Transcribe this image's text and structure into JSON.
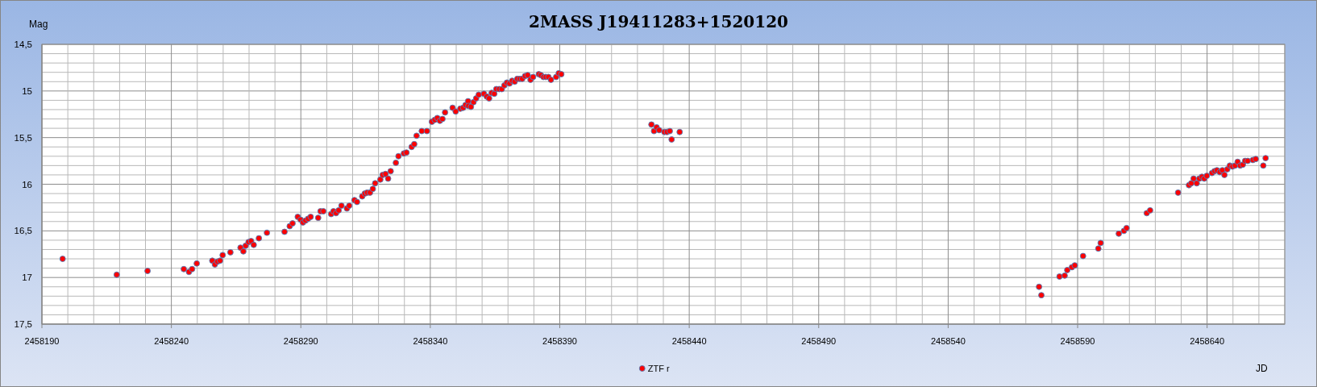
{
  "chart_data": {
    "type": "scatter",
    "title": "2MASS J19411283+1520120",
    "xlabel": "JD",
    "ylabel": "Mag",
    "legend": "bottom",
    "grid": true,
    "marker": "circle",
    "xlim": [
      2458190,
      2458670
    ],
    "xticks": [
      2458190,
      {
        "value": 2458200,
        "label": null
      },
      {
        "value": 2458210,
        "label": null
      },
      {
        "value": 2458220,
        "label": null
      },
      {
        "value": 2458230,
        "label": null
      },
      2458240,
      {
        "value": 2458250,
        "label": null
      },
      {
        "value": 2458260,
        "label": null
      },
      {
        "value": 2458270,
        "label": null
      },
      {
        "value": 2458280,
        "label": null
      },
      2458290,
      {
        "value": 2458300,
        "label": null
      },
      {
        "value": 2458310,
        "label": null
      },
      {
        "value": 2458320,
        "label": null
      },
      {
        "value": 2458330,
        "label": null
      },
      2458340,
      {
        "value": 2458350,
        "label": null
      },
      {
        "value": 2458360,
        "label": null
      },
      {
        "value": 2458370,
        "label": null
      },
      {
        "value": 2458380,
        "label": null
      },
      2458390,
      {
        "value": 2458400,
        "label": null
      },
      {
        "value": 2458410,
        "label": null
      },
      {
        "value": 2458420,
        "label": null
      },
      {
        "value": 2458430,
        "label": null
      },
      2458440,
      {
        "value": 2458450,
        "label": null
      },
      {
        "value": 2458460,
        "label": null
      },
      {
        "value": 2458470,
        "label": null
      },
      {
        "value": 2458480,
        "label": null
      },
      2458490,
      {
        "value": 2458500,
        "label": null
      },
      {
        "value": 2458510,
        "label": null
      },
      {
        "value": 2458520,
        "label": null
      },
      {
        "value": 2458530,
        "label": null
      },
      2458540,
      {
        "value": 2458550,
        "label": null
      },
      {
        "value": 2458560,
        "label": null
      },
      {
        "value": 2458570,
        "label": null
      },
      {
        "value": 2458580,
        "label": null
      },
      2458590,
      {
        "value": 2458600,
        "label": null
      },
      {
        "value": 2458610,
        "label": null
      },
      {
        "value": 2458620,
        "label": null
      },
      {
        "value": 2458630,
        "label": null
      },
      2458640,
      {
        "value": 2458650,
        "label": null
      },
      {
        "value": 2458660,
        "label": null
      },
      {
        "value": 2458670,
        "label": null
      }
    ],
    "ylim": [
      17.5,
      14.5
    ],
    "yticks": [
      {
        "value": 14.5,
        "label": "14,5"
      },
      {
        "value": 14.6,
        "label": null
      },
      {
        "value": 14.7,
        "label": null
      },
      {
        "value": 14.8,
        "label": null
      },
      {
        "value": 14.9,
        "label": null
      },
      15,
      {
        "value": 15.1,
        "label": null
      },
      {
        "value": 15.2,
        "label": null
      },
      {
        "value": 15.3,
        "label": null
      },
      {
        "value": 15.4,
        "label": null
      },
      {
        "value": 15.5,
        "label": "15,5"
      },
      {
        "value": 15.6,
        "label": null
      },
      {
        "value": 15.7,
        "label": null
      },
      {
        "value": 15.8,
        "label": null
      },
      {
        "value": 15.9,
        "label": null
      },
      16,
      {
        "value": 16.1,
        "label": null
      },
      {
        "value": 16.2,
        "label": null
      },
      {
        "value": 16.3,
        "label": null
      },
      {
        "value": 16.4,
        "label": null
      },
      {
        "value": 16.5,
        "label": "16,5"
      },
      {
        "value": 16.6,
        "label": null
      },
      {
        "value": 16.7,
        "label": null
      },
      {
        "value": 16.8,
        "label": null
      },
      {
        "value": 16.9,
        "label": null
      },
      17,
      {
        "value": 17.1,
        "label": null
      },
      {
        "value": 17.2,
        "label": null
      },
      {
        "value": 17.3,
        "label": null
      },
      {
        "value": 17.4,
        "label": null
      },
      {
        "value": 17.5,
        "label": "17,5"
      }
    ],
    "x": [
      2458198.0,
      2458218.9,
      2458230.8,
      2458244.8,
      2458246.8,
      2458248.0,
      2458249.8,
      2458255.8,
      2458256.8,
      2458257.8,
      2458258.8,
      2458259.8,
      2458262.8,
      2458266.7,
      2458267.8,
      2458268.7,
      2458269.8,
      2458270.8,
      2458271.8,
      2458273.8,
      2458276.9,
      2458283.7,
      2458285.7,
      2458286.8,
      2458288.8,
      2458289.9,
      2458290.8,
      2458291.8,
      2458292.8,
      2458293.8,
      2458296.7,
      2458297.6,
      2458298.7,
      2458301.7,
      2458302.6,
      2458303.6,
      2458304.6,
      2458305.7,
      2458307.8,
      2458308.7,
      2458310.7,
      2458311.7,
      2458313.7,
      2458314.7,
      2458315.6,
      2458316.7,
      2458317.8,
      2458318.7,
      2458320.7,
      2458321.6,
      2458322.7,
      2458323.7,
      2458324.7,
      2458326.7,
      2458327.7,
      2458329.8,
      2458330.8,
      2458332.8,
      2458333.8,
      2458334.7,
      2458336.7,
      2458338.7,
      2458340.6,
      2458341.7,
      2458342.7,
      2458343.7,
      2458344.7,
      2458345.7,
      2458348.6,
      2458349.8,
      2458351.6,
      2458352.7,
      2458353.6,
      2458354.6,
      2458354.7,
      2458355.7,
      2458356.7,
      2458357.7,
      2458358.7,
      2458360.7,
      2458361.8,
      2458362.7,
      2458363.7,
      2458364.7,
      2458365.5,
      2458366.6,
      2458367.6,
      2458368.6,
      2458369.6,
      2458370.6,
      2458371.6,
      2458372.6,
      2458373.6,
      2458374.6,
      2458375.5,
      2458376.6,
      2458377.6,
      2458378.7,
      2458379.7,
      2458381.9,
      2458382.7,
      2458383.7,
      2458384.6,
      2458385.6,
      2458386.6,
      2458388.6,
      2458389.6,
      2458390.6,
      2458425.4,
      2458426.4,
      2458427.4,
      2458428.4,
      2458430.4,
      2458431.4,
      2458432.5,
      2458433.2,
      2458436.3,
      2458575.1,
      2458576.0,
      2458583.0,
      2458585.0,
      2458586.0,
      2458587.8,
      2458588.9,
      2458592.1,
      2458598.0,
      2458598.9,
      2458605.9,
      2458607.9,
      2458608.9,
      2458616.7,
      2458618.0,
      2458628.8,
      2458633.0,
      2458633.9,
      2458634.8,
      2458636.0,
      2458637.0,
      2458638.0,
      2458638.9,
      2458639.9,
      2458641.9,
      2458642.9,
      2458643.8,
      2458644.9,
      2458645.9,
      2458646.7,
      2458647.8,
      2458648.8,
      2458649.8,
      2458650.8,
      2458651.8,
      2458652.8,
      2458653.8,
      2458654.7,
      2458655.7,
      2458657.7,
      2458658.8,
      2458661.7,
      2458662.6
    ],
    "series": [
      {
        "name": "ZTF r",
        "color": "#ff0000",
        "values": [
          16.8,
          16.97,
          16.93,
          16.91,
          16.94,
          16.91,
          16.85,
          16.82,
          16.86,
          16.83,
          16.82,
          16.76,
          16.73,
          16.68,
          16.72,
          16.66,
          16.62,
          16.61,
          16.65,
          16.58,
          16.52,
          16.51,
          16.45,
          16.42,
          16.35,
          16.38,
          16.41,
          16.39,
          16.37,
          16.35,
          16.36,
          16.29,
          16.29,
          16.32,
          16.29,
          16.31,
          16.28,
          16.23,
          16.26,
          16.23,
          16.17,
          16.19,
          16.13,
          16.1,
          16.09,
          16.09,
          16.05,
          15.99,
          15.95,
          15.9,
          15.89,
          15.94,
          15.86,
          15.77,
          15.7,
          15.67,
          15.66,
          15.6,
          15.57,
          15.48,
          15.43,
          15.43,
          15.33,
          15.31,
          15.29,
          15.32,
          15.3,
          15.23,
          15.18,
          15.22,
          15.19,
          15.18,
          15.15,
          15.11,
          15.16,
          15.17,
          15.12,
          15.08,
          15.04,
          15.03,
          15.06,
          15.08,
          15.02,
          15.03,
          14.98,
          14.98,
          14.98,
          14.94,
          14.91,
          14.92,
          14.89,
          14.9,
          14.87,
          14.87,
          14.87,
          14.84,
          14.83,
          14.88,
          14.85,
          14.82,
          14.83,
          14.85,
          14.85,
          14.85,
          14.88,
          14.85,
          14.81,
          14.82,
          15.36,
          15.43,
          15.39,
          15.42,
          15.44,
          15.44,
          15.43,
          15.52,
          15.44,
          17.1,
          17.19,
          16.99,
          16.98,
          16.92,
          16.89,
          16.87,
          16.77,
          16.69,
          16.63,
          16.53,
          16.5,
          16.47,
          16.31,
          16.28,
          16.09,
          16.01,
          15.99,
          15.94,
          15.99,
          15.94,
          15.92,
          15.94,
          15.91,
          15.88,
          15.86,
          15.85,
          15.87,
          15.85,
          15.9,
          15.84,
          15.8,
          15.81,
          15.8,
          15.76,
          15.8,
          15.79,
          15.75,
          15.75,
          15.74,
          15.73,
          15.8,
          15.72
        ]
      }
    ]
  }
}
